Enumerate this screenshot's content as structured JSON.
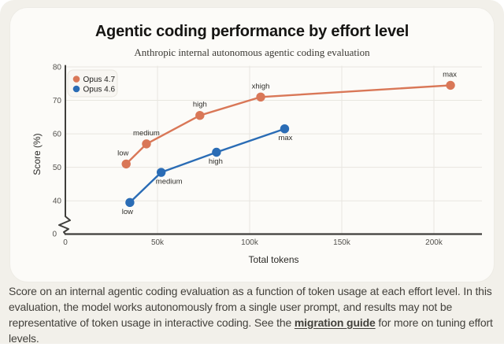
{
  "page": {
    "background": "#f2f0ea",
    "card_background": "#fcfbf8"
  },
  "card": {
    "title": "Agentic coding performance by effort level",
    "subtitle": "Anthropic internal autonomous agentic coding evaluation"
  },
  "chart_data": {
    "type": "line",
    "title": "Agentic coding performance by effort level",
    "subtitle": "Anthropic internal autonomous agentic coding evaluation",
    "xlabel": "Total tokens",
    "ylabel": "Score (%)",
    "grid": true,
    "legend_position": "top-left",
    "xlim": [
      0,
      226000
    ],
    "ylim": [
      0,
      80
    ],
    "y_axis_break": {
      "shown": true,
      "between": [
        0,
        40
      ],
      "zero_label": "0"
    },
    "x_ticks": {
      "values": [
        0,
        50000,
        100000,
        150000,
        200000
      ],
      "labels": [
        "0",
        "50k",
        "100k",
        "150k",
        "200k"
      ]
    },
    "y_ticks": {
      "values": [
        40,
        50,
        60,
        70,
        80
      ],
      "labels": [
        "40",
        "50",
        "60",
        "70",
        "80"
      ]
    },
    "colors": {
      "axis": "#3f3e3b",
      "grid": "#e8e6e0",
      "legend_bg": "#f8f6f2",
      "legend_border": "#e9e6df"
    },
    "series": [
      {
        "name": "Opus 4.7",
        "color": "#d97757",
        "label_side": "above",
        "points": [
          {
            "x": 33000,
            "y": 51,
            "label": "low",
            "dx": -4
          },
          {
            "x": 44000,
            "y": 57,
            "label": "medium",
            "dx": 0
          },
          {
            "x": 73000,
            "y": 65.5,
            "label": "high",
            "dx": 0
          },
          {
            "x": 106000,
            "y": 71,
            "label": "xhigh",
            "dx": 0
          },
          {
            "x": 209000,
            "y": 74.5,
            "label": "max",
            "dx": -1
          }
        ]
      },
      {
        "name": "Opus 4.6",
        "color": "#2a6cb5",
        "label_side": "below",
        "points": [
          {
            "x": 35000,
            "y": 39.5,
            "label": "low",
            "dx": -3
          },
          {
            "x": 52000,
            "y": 48.5,
            "label": "medium",
            "dx": 10
          },
          {
            "x": 82000,
            "y": 54.5,
            "label": "high",
            "dx": -1
          },
          {
            "x": 119000,
            "y": 61.5,
            "label": "max",
            "dx": 1
          }
        ]
      }
    ]
  },
  "caption": {
    "text_before": "Score on an internal agentic coding evaluation as a function of token usage at each effort level. In this evaluation, the model works autonomously from a single user prompt, and results may not be representative of token usage in interactive coding. See the ",
    "link_text": "migration guide",
    "text_after": " for more on tuning effort levels."
  }
}
